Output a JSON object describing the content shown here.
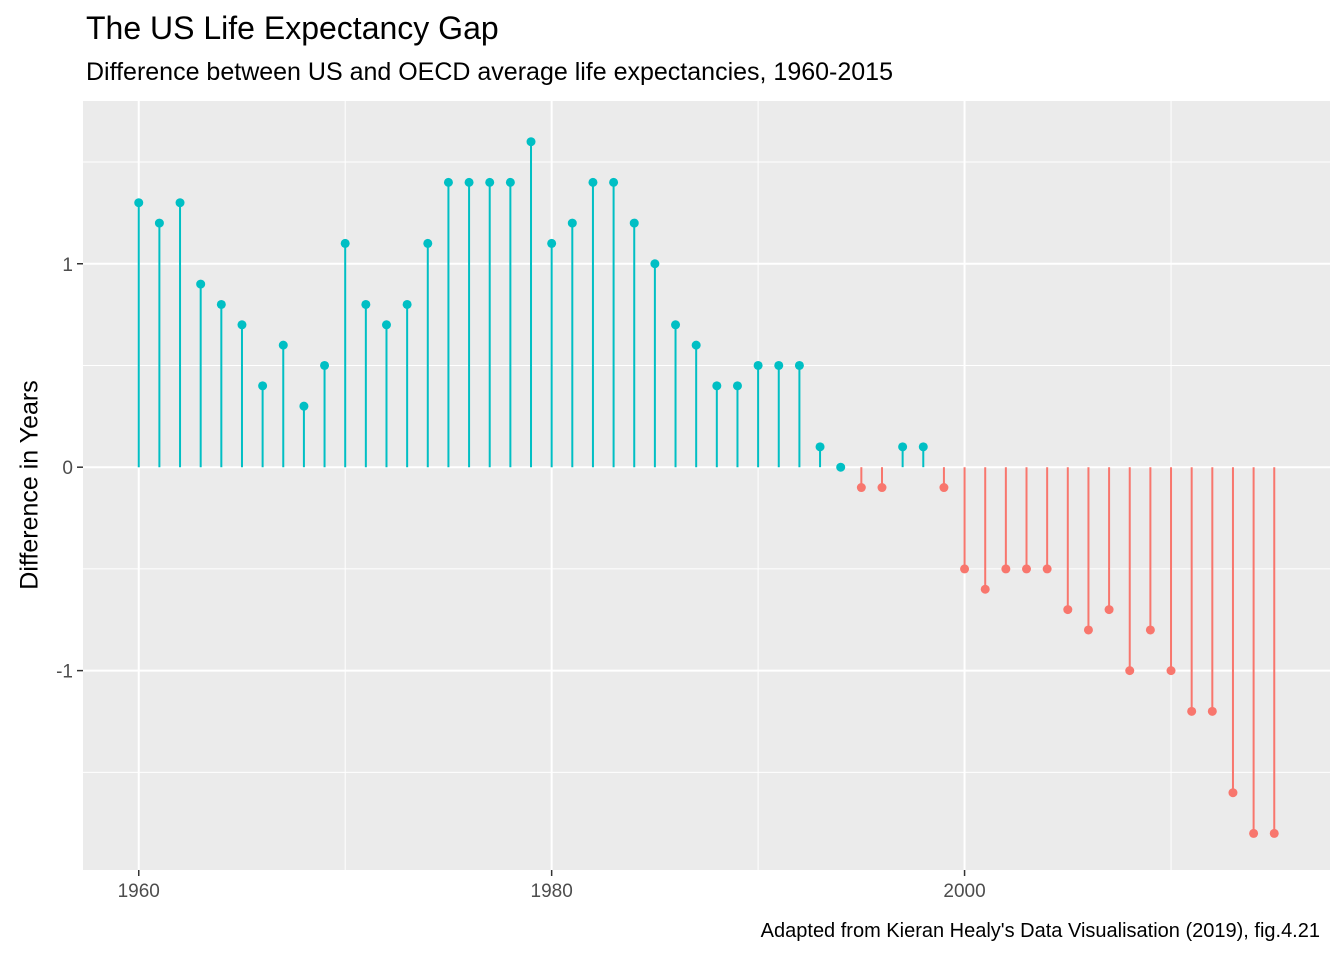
{
  "chart_data": {
    "type": "lollipop",
    "title": "The US Life Expectancy Gap",
    "subtitle": "Difference between US and OECD average life expectancies, 1960-2015",
    "ylabel": "Difference in Years",
    "xlabel": "",
    "caption": "Adapted from Kieran Healy's Data Visualisation (2019), fig.4.21",
    "xlim": [
      1957.3,
      2017.7
    ],
    "ylim": [
      -1.98,
      1.8
    ],
    "x_ticks": [
      {
        "value": 1960,
        "label": "1960"
      },
      {
        "value": 1980,
        "label": "1980"
      },
      {
        "value": 2000,
        "label": "2000"
      }
    ],
    "y_ticks": [
      {
        "value": -1,
        "label": "-1"
      },
      {
        "value": 0,
        "label": "0"
      },
      {
        "value": 1,
        "label": "1"
      }
    ],
    "grid": true,
    "legend": "none",
    "colors": {
      "above": "#00BFC4",
      "below": "#F8766D",
      "panel": "#EBEBEB",
      "grid": "#FFFFFF"
    },
    "x": [
      1960,
      1961,
      1962,
      1963,
      1964,
      1965,
      1966,
      1967,
      1968,
      1969,
      1970,
      1971,
      1972,
      1973,
      1974,
      1975,
      1976,
      1977,
      1978,
      1979,
      1980,
      1981,
      1982,
      1983,
      1984,
      1985,
      1986,
      1987,
      1988,
      1989,
      1990,
      1991,
      1992,
      1993,
      1994,
      1995,
      1996,
      1997,
      1998,
      1999,
      2000,
      2001,
      2002,
      2003,
      2004,
      2005,
      2006,
      2007,
      2008,
      2009,
      2010,
      2011,
      2012,
      2013,
      2014,
      2015
    ],
    "values": [
      1.3,
      1.2,
      1.3,
      0.9,
      0.8,
      0.7,
      0.4,
      0.6,
      0.3,
      0.5,
      1.1,
      0.8,
      0.7,
      0.8,
      1.1,
      1.4,
      1.4,
      1.4,
      1.4,
      1.6,
      1.1,
      1.2,
      1.4,
      1.4,
      1.2,
      1.0,
      0.7,
      0.6,
      0.4,
      0.4,
      0.5,
      0.5,
      0.5,
      0.1,
      0.0,
      -0.1,
      -0.1,
      0.1,
      0.1,
      -0.1,
      -0.5,
      -0.6,
      -0.5,
      -0.5,
      -0.5,
      -0.7,
      -0.8,
      -0.7,
      -1.0,
      -0.8,
      -1.0,
      -1.2,
      -1.2,
      -1.6,
      -1.8,
      -1.8
    ]
  }
}
